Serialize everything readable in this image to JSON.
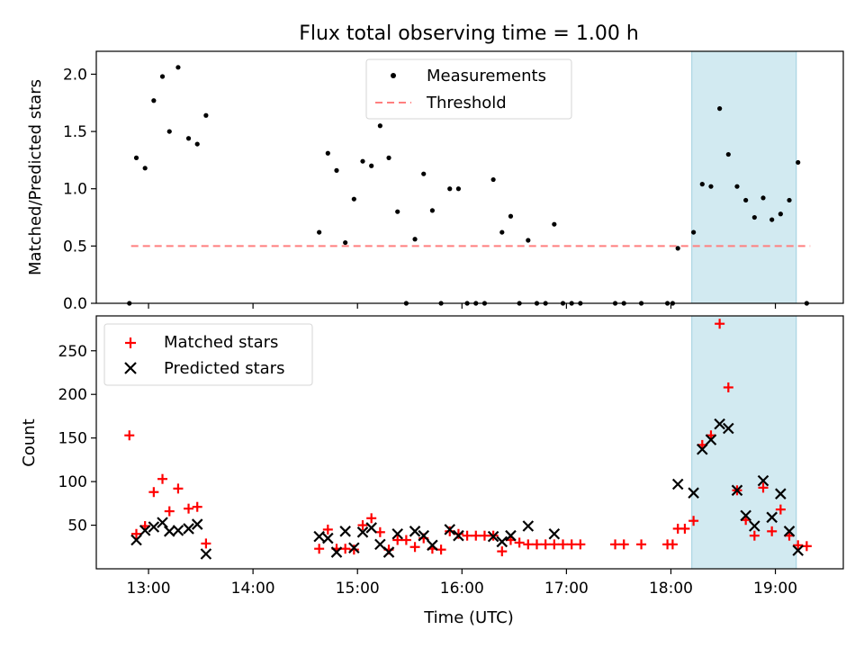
{
  "chart_data": {
    "title": "Flux total observing time = 1.00 h",
    "xlabel": "Time (UTC)",
    "x_unit": "hours UTC",
    "xlim": [
      "12:30",
      "19:39"
    ],
    "x_ticks": [
      "13:00",
      "14:00",
      "15:00",
      "16:00",
      "17:00",
      "18:00",
      "19:00"
    ],
    "shaded_interval": {
      "start": "18:12",
      "end": "19:12",
      "color": "#add8e6"
    },
    "panels": [
      {
        "type": "scatter",
        "ylabel": "Matched/Predicted stars",
        "ylim": [
          0,
          2.2
        ],
        "y_ticks": [
          "0.0",
          "0.5",
          "1.0",
          "1.5",
          "2.0"
        ],
        "legend_position": "top-center",
        "series": [
          {
            "name": "Measurements",
            "marker": "dot",
            "color": "#000000",
            "points": [
              [
                "12:49",
                0.0
              ],
              [
                "12:53",
                1.27
              ],
              [
                "12:58",
                1.18
              ],
              [
                "13:03",
                1.77
              ],
              [
                "13:08",
                1.98
              ],
              [
                "13:12",
                1.5
              ],
              [
                "13:17",
                2.06
              ],
              [
                "13:23",
                1.44
              ],
              [
                "13:28",
                1.39
              ],
              [
                "13:33",
                1.64
              ],
              [
                "14:38",
                0.62
              ],
              [
                "14:43",
                1.31
              ],
              [
                "14:48",
                1.16
              ],
              [
                "14:53",
                0.53
              ],
              [
                "14:58",
                0.91
              ],
              [
                "15:03",
                1.24
              ],
              [
                "15:08",
                1.2
              ],
              [
                "15:13",
                1.55
              ],
              [
                "15:18",
                1.27
              ],
              [
                "15:23",
                0.8
              ],
              [
                "15:28",
                0.0
              ],
              [
                "15:33",
                0.56
              ],
              [
                "15:38",
                1.13
              ],
              [
                "15:43",
                0.81
              ],
              [
                "15:48",
                0.0
              ],
              [
                "15:53",
                1.0
              ],
              [
                "15:58",
                1.0
              ],
              [
                "16:03",
                0.0
              ],
              [
                "16:08",
                0.0
              ],
              [
                "16:13",
                0.0
              ],
              [
                "16:18",
                1.08
              ],
              [
                "16:23",
                0.62
              ],
              [
                "16:28",
                0.76
              ],
              [
                "16:33",
                0.0
              ],
              [
                "16:38",
                0.55
              ],
              [
                "16:43",
                0.0
              ],
              [
                "16:48",
                0.0
              ],
              [
                "16:53",
                0.69
              ],
              [
                "16:58",
                0.0
              ],
              [
                "17:03",
                0.0
              ],
              [
                "17:08",
                0.0
              ],
              [
                "17:28",
                0.0
              ],
              [
                "17:33",
                0.0
              ],
              [
                "17:43",
                0.0
              ],
              [
                "17:58",
                0.0
              ],
              [
                "18:01",
                0.0
              ],
              [
                "18:04",
                0.48
              ],
              [
                "18:13",
                0.62
              ],
              [
                "18:18",
                1.04
              ],
              [
                "18:23",
                1.02
              ],
              [
                "18:28",
                1.7
              ],
              [
                "18:33",
                1.3
              ],
              [
                "18:38",
                1.02
              ],
              [
                "18:43",
                0.9
              ],
              [
                "18:48",
                0.75
              ],
              [
                "18:53",
                0.92
              ],
              [
                "18:58",
                0.73
              ],
              [
                "19:03",
                0.78
              ],
              [
                "19:08",
                0.9
              ],
              [
                "19:13",
                1.23
              ],
              [
                "19:18",
                0.0
              ]
            ]
          },
          {
            "name": "Threshold",
            "style": "dashed",
            "color": "#ff7f7f",
            "points": [
              [
                "12:50",
                0.5
              ],
              [
                "19:20",
                0.5
              ]
            ]
          }
        ]
      },
      {
        "type": "scatter",
        "ylabel": "Count",
        "ylim": [
          0,
          290
        ],
        "y_ticks": [
          "50",
          "100",
          "150",
          "200",
          "250"
        ],
        "legend_position": "top-left",
        "series": [
          {
            "name": "Matched stars",
            "marker": "plus",
            "color": "#ff0000",
            "points": [
              [
                "12:49",
                153
              ],
              [
                "12:53",
                40
              ],
              [
                "12:58",
                49
              ],
              [
                "13:03",
                88
              ],
              [
                "13:08",
                103
              ],
              [
                "13:12",
                66
              ],
              [
                "13:17",
                92
              ],
              [
                "13:23",
                69
              ],
              [
                "13:28",
                71
              ],
              [
                "13:33",
                29
              ],
              [
                "14:38",
                23
              ],
              [
                "14:43",
                45
              ],
              [
                "14:48",
                23
              ],
              [
                "14:53",
                23
              ],
              [
                "14:58",
                22
              ],
              [
                "15:03",
                50
              ],
              [
                "15:08",
                58
              ],
              [
                "15:13",
                42
              ],
              [
                "15:18",
                22
              ],
              [
                "15:23",
                33
              ],
              [
                "15:28",
                33
              ],
              [
                "15:33",
                25
              ],
              [
                "15:38",
                35
              ],
              [
                "15:43",
                23
              ],
              [
                "15:48",
                22
              ],
              [
                "15:53",
                43
              ],
              [
                "15:58",
                40
              ],
              [
                "16:03",
                38
              ],
              [
                "16:08",
                38
              ],
              [
                "16:13",
                38
              ],
              [
                "16:18",
                38
              ],
              [
                "16:23",
                20
              ],
              [
                "16:28",
                33
              ],
              [
                "16:33",
                30
              ],
              [
                "16:38",
                28
              ],
              [
                "16:43",
                28
              ],
              [
                "16:48",
                28
              ],
              [
                "16:53",
                28
              ],
              [
                "16:58",
                28
              ],
              [
                "17:03",
                28
              ],
              [
                "17:08",
                28
              ],
              [
                "17:28",
                28
              ],
              [
                "17:33",
                28
              ],
              [
                "17:43",
                28
              ],
              [
                "17:58",
                28
              ],
              [
                "18:01",
                28
              ],
              [
                "18:04",
                46
              ],
              [
                "18:08",
                46
              ],
              [
                "18:13",
                55
              ],
              [
                "18:18",
                142
              ],
              [
                "18:23",
                153
              ],
              [
                "18:28",
                281
              ],
              [
                "18:33",
                208
              ],
              [
                "18:38",
                90
              ],
              [
                "18:43",
                56
              ],
              [
                "18:48",
                38
              ],
              [
                "18:53",
                93
              ],
              [
                "18:58",
                43
              ],
              [
                "19:03",
                68
              ],
              [
                "19:08",
                38
              ],
              [
                "19:13",
                27
              ],
              [
                "19:18",
                26
              ]
            ]
          },
          {
            "name": "Predicted stars",
            "marker": "x",
            "color": "#000000",
            "points": [
              [
                "12:53",
                33
              ],
              [
                "12:58",
                44
              ],
              [
                "13:03",
                48
              ],
              [
                "13:08",
                53
              ],
              [
                "13:12",
                43
              ],
              [
                "13:17",
                44
              ],
              [
                "13:23",
                46
              ],
              [
                "13:28",
                51
              ],
              [
                "13:33",
                17
              ],
              [
                "14:38",
                37
              ],
              [
                "14:43",
                35
              ],
              [
                "14:48",
                19
              ],
              [
                "14:53",
                43
              ],
              [
                "14:58",
                24
              ],
              [
                "15:03",
                42
              ],
              [
                "15:08",
                47
              ],
              [
                "15:13",
                28
              ],
              [
                "15:18",
                19
              ],
              [
                "15:23",
                40
              ],
              [
                "15:33",
                43
              ],
              [
                "15:38",
                38
              ],
              [
                "15:43",
                27
              ],
              [
                "15:53",
                45
              ],
              [
                "15:58",
                38
              ],
              [
                "16:18",
                37
              ],
              [
                "16:23",
                31
              ],
              [
                "16:28",
                38
              ],
              [
                "16:38",
                49
              ],
              [
                "16:53",
                40
              ],
              [
                "18:04",
                97
              ],
              [
                "18:13",
                87
              ],
              [
                "18:18",
                137
              ],
              [
                "18:23",
                148
              ],
              [
                "18:28",
                166
              ],
              [
                "18:33",
                161
              ],
              [
                "18:38",
                90
              ],
              [
                "18:43",
                61
              ],
              [
                "18:48",
                49
              ],
              [
                "18:53",
                101
              ],
              [
                "18:58",
                59
              ],
              [
                "19:03",
                86
              ],
              [
                "19:08",
                43
              ],
              [
                "19:13",
                21
              ]
            ]
          }
        ]
      }
    ]
  }
}
